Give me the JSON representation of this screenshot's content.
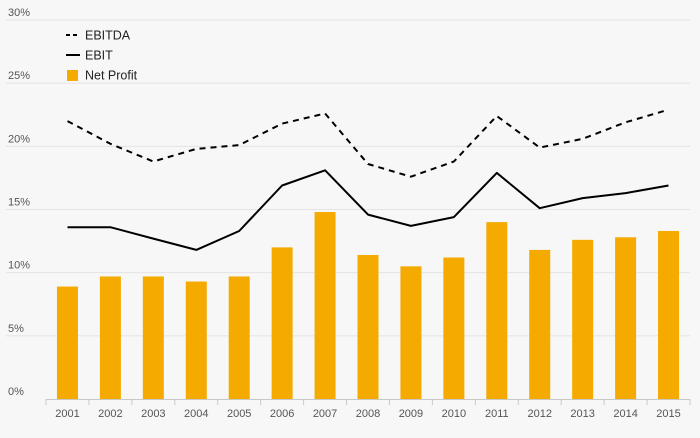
{
  "chart_data": {
    "type": "bar",
    "title": "",
    "xlabel": "",
    "ylabel": "",
    "ylim": [
      0,
      30
    ],
    "y_ticks": [
      "0%",
      "5%",
      "10%",
      "15%",
      "20%",
      "25%",
      "30%"
    ],
    "grid": "horizontal",
    "legend_position": "top-left",
    "categories": [
      "2001",
      "2002",
      "2003",
      "2004",
      "2005",
      "2006",
      "2007",
      "2008",
      "2009",
      "2010",
      "2011",
      "2012",
      "2013",
      "2014",
      "2015"
    ],
    "series": [
      {
        "name": "EBITDA",
        "kind": "line",
        "style": "dashed",
        "color": "#000000",
        "values": [
          22.0,
          20.2,
          18.8,
          19.8,
          20.1,
          21.8,
          22.6,
          18.6,
          17.6,
          18.8,
          22.4,
          19.9,
          20.6,
          21.9,
          22.9
        ]
      },
      {
        "name": "EBIT",
        "kind": "line",
        "style": "solid",
        "color": "#000000",
        "values": [
          13.6,
          13.6,
          12.7,
          11.8,
          13.3,
          16.9,
          18.1,
          14.6,
          13.7,
          14.4,
          17.9,
          15.1,
          15.9,
          16.3,
          16.9
        ]
      },
      {
        "name": "Net Profit",
        "kind": "bar",
        "color": "#f5aa00",
        "values": [
          8.9,
          9.7,
          9.7,
          9.3,
          9.7,
          12.0,
          14.8,
          11.4,
          10.5,
          11.2,
          14.0,
          11.8,
          12.6,
          12.8,
          13.3
        ]
      }
    ]
  },
  "colors": {
    "background": "#f7f7f7",
    "grid": "#e3e3e3",
    "axis": "#c8c8c8",
    "bar": "#f5aa00",
    "line": "#000000"
  }
}
